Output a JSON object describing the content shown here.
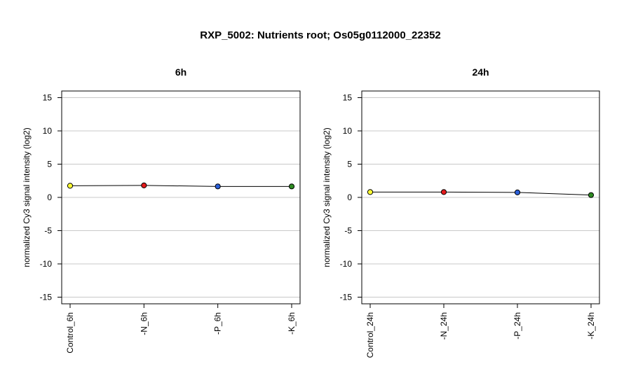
{
  "figure": {
    "title": "RXP_5002: Nutrients root; Os05g0112000_22352"
  },
  "chart_data": [
    {
      "type": "line",
      "title": "6h",
      "xlabel": "",
      "ylabel": "normalized Cy3 signal intensity (log2)",
      "ylim": [
        -16,
        16
      ],
      "yticks": [
        -15,
        -10,
        -5,
        0,
        5,
        10,
        15
      ],
      "grid": true,
      "categories": [
        "Control_6h",
        "-N_6h",
        "-P_6h",
        "-K_6h"
      ],
      "values": [
        1.75,
        1.8,
        1.65,
        1.65
      ],
      "point_colors": [
        "#ffff33",
        "#e41a1c",
        "#2b5fd9",
        "#2e8b22"
      ]
    },
    {
      "type": "line",
      "title": "24h",
      "xlabel": "",
      "ylabel": "normalized Cy3 signal intensity (log2)",
      "ylim": [
        -16,
        16
      ],
      "yticks": [
        -15,
        -10,
        -5,
        0,
        5,
        10,
        15
      ],
      "grid": true,
      "categories": [
        "Control_24h",
        "-N_24h",
        "-P_24h",
        "-K_24h"
      ],
      "values": [
        0.8,
        0.8,
        0.75,
        0.35
      ],
      "point_colors": [
        "#ffff33",
        "#e41a1c",
        "#2b5fd9",
        "#2e8b22"
      ]
    }
  ]
}
